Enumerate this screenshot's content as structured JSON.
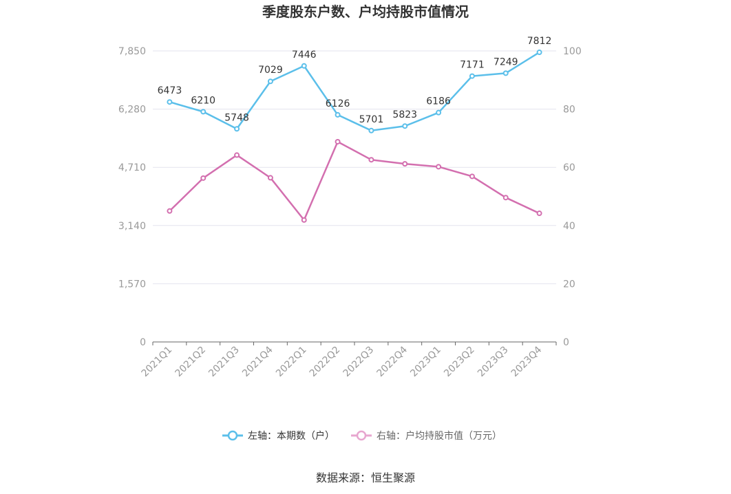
{
  "chart_data": {
    "type": "line",
    "title": "季度股东户数、户均持股市值情况",
    "categories": [
      "2021Q1",
      "2021Q2",
      "2021Q3",
      "2021Q4",
      "2022Q1",
      "2022Q2",
      "2022Q3",
      "2022Q4",
      "2023Q1",
      "2023Q2",
      "2023Q3",
      "2023Q4"
    ],
    "left_axis": {
      "ticks": [
        "0",
        "1,570",
        "3,140",
        "4,710",
        "6,280",
        "7,850"
      ],
      "min": 0,
      "max": 7850
    },
    "right_axis": {
      "ticks": [
        "0",
        "20",
        "40",
        "60",
        "80",
        "100"
      ],
      "min": 0,
      "max": 100
    },
    "series": [
      {
        "name": "左轴：本期数（户）",
        "axis": "left",
        "color": "#5bbfea",
        "values": [
          6473,
          6210,
          5748,
          7029,
          7446,
          6126,
          5701,
          5823,
          6186,
          7171,
          7249,
          7812
        ],
        "labels": [
          "6473",
          "6210",
          "5748",
          "7029",
          "7446",
          "6126",
          "5701",
          "5823",
          "6186",
          "7171",
          "7249",
          "7812"
        ]
      },
      {
        "name": "右轴：户均持股市值（万元）",
        "axis": "right",
        "color": "#d36faf",
        "values": [
          45.0,
          56.3,
          64.2,
          56.4,
          41.9,
          68.8,
          62.6,
          61.2,
          60.2,
          56.9,
          49.6,
          44.2
        ]
      }
    ],
    "legend_position": "bottom",
    "grid": true
  },
  "footer": {
    "source": "数据来源：恒生聚源"
  }
}
